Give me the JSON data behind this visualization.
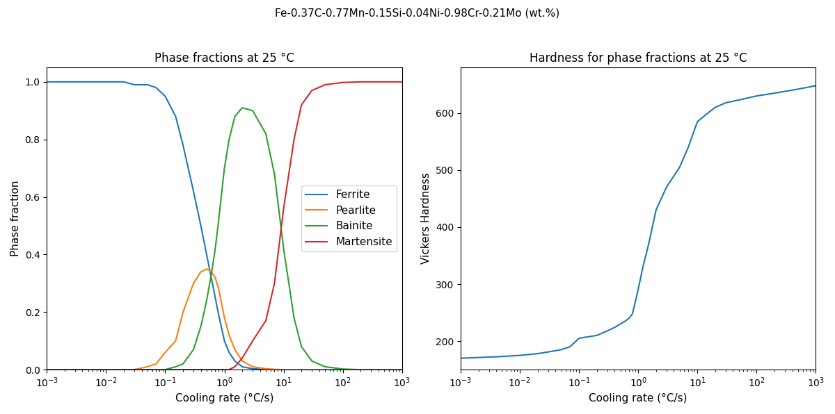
{
  "suptitle": "Fe-0.37C-0.77Mn-0.15Si-0.04Ni-0.98Cr-0.21Mo (wt.%)",
  "left_title": "Phase fractions at 25 °C",
  "right_title": "Hardness for phase fractions at 25 °C",
  "xlabel": "Cooling rate (°C/s)",
  "left_ylabel": "Phase fraction",
  "right_ylabel": "Vickers Hardness",
  "cooling_rates": [
    0.001,
    0.003,
    0.005,
    0.007,
    0.01,
    0.02,
    0.03,
    0.05,
    0.07,
    0.1,
    0.15,
    0.2,
    0.3,
    0.4,
    0.5,
    0.6,
    0.7,
    0.8,
    1.0,
    1.2,
    1.5,
    2.0,
    3.0,
    5.0,
    7.0,
    10.0,
    15.0,
    20.0,
    30.0,
    50.0,
    100.0,
    200.0,
    500.0,
    1000.0
  ],
  "ferrite": [
    1.0,
    1.0,
    1.0,
    1.0,
    1.0,
    1.0,
    0.99,
    0.99,
    0.98,
    0.95,
    0.88,
    0.78,
    0.62,
    0.5,
    0.4,
    0.32,
    0.25,
    0.19,
    0.1,
    0.06,
    0.03,
    0.01,
    0.003,
    0.001,
    0.0,
    0.0,
    0.0,
    0.0,
    0.0,
    0.0,
    0.0,
    0.0,
    0.0,
    0.0
  ],
  "pearlite": [
    0.0,
    0.0,
    0.0,
    0.0,
    0.0,
    0.0,
    0.0,
    0.01,
    0.02,
    0.06,
    0.1,
    0.2,
    0.3,
    0.34,
    0.35,
    0.34,
    0.32,
    0.28,
    0.18,
    0.12,
    0.07,
    0.03,
    0.01,
    0.003,
    0.001,
    0.0,
    0.0,
    0.0,
    0.0,
    0.0,
    0.0,
    0.0,
    0.0,
    0.0
  ],
  "bainite": [
    0.0,
    0.0,
    0.0,
    0.0,
    0.0,
    0.0,
    0.0,
    0.0,
    0.0,
    0.0,
    0.01,
    0.02,
    0.07,
    0.15,
    0.24,
    0.33,
    0.42,
    0.52,
    0.7,
    0.8,
    0.88,
    0.91,
    0.9,
    0.82,
    0.68,
    0.42,
    0.18,
    0.08,
    0.03,
    0.01,
    0.002,
    0.0,
    0.0,
    0.0
  ],
  "martensite": [
    0.0,
    0.0,
    0.0,
    0.0,
    0.0,
    0.0,
    0.0,
    0.0,
    0.0,
    0.0,
    0.0,
    0.0,
    0.0,
    0.0,
    0.0,
    0.0,
    0.0,
    0.0,
    0.0,
    0.0,
    0.01,
    0.04,
    0.1,
    0.17,
    0.3,
    0.56,
    0.8,
    0.92,
    0.97,
    0.99,
    0.998,
    1.0,
    1.0,
    1.0
  ],
  "hardness": [
    170,
    172,
    173,
    174,
    175,
    178,
    181,
    185,
    190,
    205,
    208,
    210,
    218,
    224,
    230,
    235,
    240,
    248,
    291,
    330,
    370,
    430,
    470,
    505,
    540,
    585,
    600,
    610,
    618,
    623,
    630,
    635,
    642,
    648
  ],
  "colors": {
    "ferrite": "#1f77b4",
    "pearlite": "#ff7f0e",
    "bainite": "#2ca02c",
    "martensite": "#d62728"
  },
  "line_color": "#1f77b4",
  "hardness_ylim": [
    150,
    680
  ],
  "phase_ylim": [
    0.0,
    1.05
  ]
}
